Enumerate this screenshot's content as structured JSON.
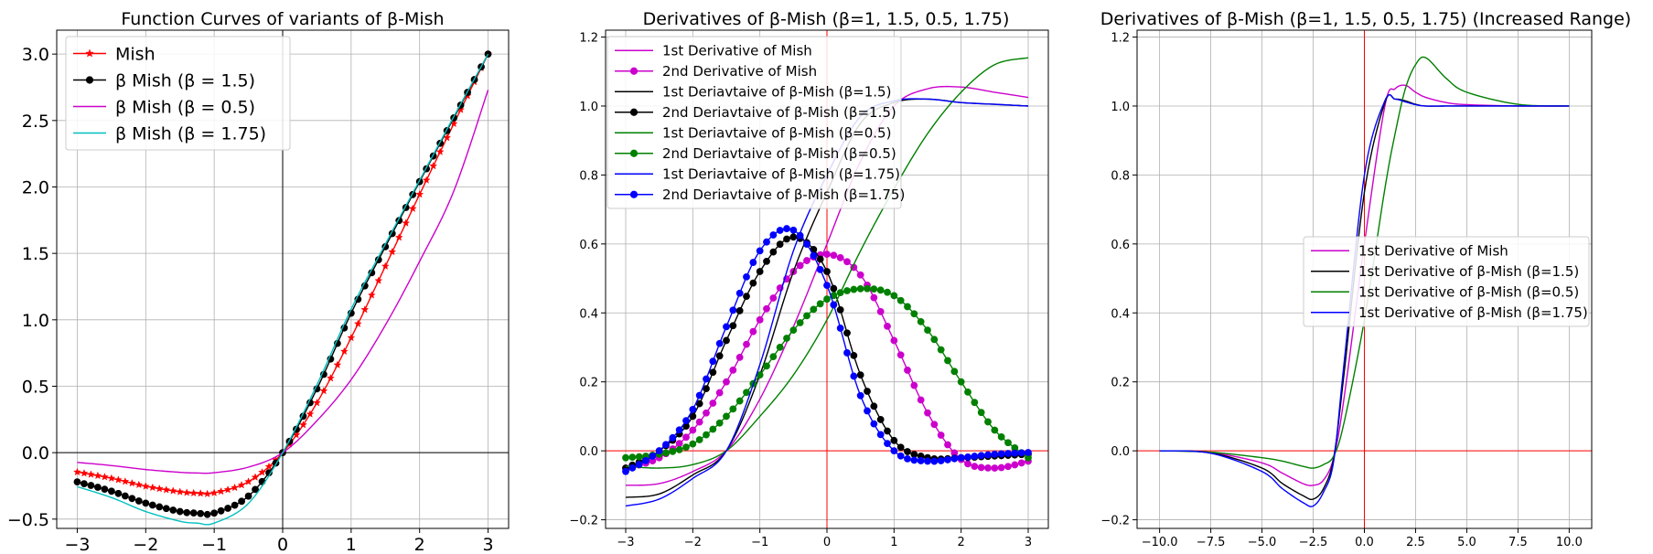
{
  "figure": {
    "background": "#ffffff"
  },
  "chart_data": [
    {
      "type": "line",
      "title": "Function Curves of variants of β-Mish",
      "xlabel": "",
      "ylabel": "",
      "xlim": [
        -3.3,
        3.3
      ],
      "ylim": [
        -0.57,
        3.18
      ],
      "xticks": [
        -3,
        -2,
        -1,
        0,
        1,
        2,
        3
      ],
      "xtick_labels": [
        "−3",
        "−2",
        "−1",
        "0",
        "1",
        "2",
        "3"
      ],
      "yticks": [
        -0.5,
        0.0,
        0.5,
        1.0,
        1.5,
        2.0,
        2.5,
        3.0
      ],
      "ytick_labels": [
        "−0.5",
        "0.0",
        "0.5",
        "1.0",
        "1.5",
        "2.0",
        "2.5",
        "3.0"
      ],
      "grid": true,
      "axis_lines": {
        "x0": "#000000",
        "y0": "#000000"
      },
      "legend_position": "top-left",
      "x": [
        -3.0,
        -2.5,
        -2.0,
        -1.5,
        -1.25,
        -1.0,
        -0.5,
        0.0,
        0.5,
        1.0,
        1.5,
        2.0,
        2.5,
        3.0
      ],
      "series": [
        {
          "name": "Mish",
          "color": "#ff0000",
          "marker": "star",
          "values": [
            -0.146,
            -0.193,
            -0.253,
            -0.295,
            -0.305,
            -0.303,
            -0.218,
            0.0,
            0.375,
            0.865,
            1.403,
            1.944,
            2.476,
            3.0
          ]
        },
        {
          "name": "β Mish (β = 1.5)",
          "color": "#000000",
          "marker": "dot",
          "values": [
            -0.22,
            -0.29,
            -0.38,
            -0.443,
            -0.455,
            -0.455,
            -0.327,
            0.0,
            0.48,
            1.05,
            1.55,
            2.04,
            2.52,
            3.0
          ]
        },
        {
          "name": "β Mish (β = 0.5)",
          "color": "#cc00cc",
          "marker": "none",
          "values": [
            -0.073,
            -0.097,
            -0.127,
            -0.148,
            -0.153,
            -0.151,
            -0.109,
            0.0,
            0.24,
            0.55,
            0.96,
            1.44,
            1.97,
            2.73
          ]
        },
        {
          "name": "β Mish (β = 1.75)",
          "color": "#00bfbf",
          "marker": "none",
          "values": [
            -0.256,
            -0.338,
            -0.443,
            -0.516,
            -0.53,
            -0.53,
            -0.382,
            0.0,
            0.51,
            1.08,
            1.57,
            2.05,
            2.53,
            3.0
          ]
        }
      ]
    },
    {
      "type": "line",
      "title": "Derivatives of β-Mish (β=1, 1.5, 0.5, 1.75)",
      "xlabel": "",
      "ylabel": "",
      "xlim": [
        -3.3,
        3.3
      ],
      "ylim": [
        -0.225,
        1.22
      ],
      "xticks": [
        -3,
        -2,
        -1,
        0,
        1,
        2,
        3
      ],
      "xtick_labels": [
        "−3",
        "−2",
        "−1",
        "0",
        "1",
        "2",
        "3"
      ],
      "yticks": [
        -0.2,
        0.0,
        0.2,
        0.4,
        0.6,
        0.8,
        1.0,
        1.2
      ],
      "ytick_labels": [
        "−0.2",
        "0.0",
        "0.2",
        "0.4",
        "0.6",
        "0.8",
        "1.0",
        "1.2"
      ],
      "grid": true,
      "axis_lines": {
        "x0": "#ff0000",
        "y0": "#ff0000"
      },
      "legend_position": "top-left",
      "x": [
        -3.0,
        -2.5,
        -2.0,
        -1.5,
        -1.0,
        -0.5,
        0.0,
        0.5,
        1.0,
        1.5,
        2.0,
        2.5,
        3.0
      ],
      "series": [
        {
          "name": "1st Derivative of Mish",
          "color": "#cc00cc",
          "marker": "none",
          "values": [
            -0.1,
            -0.095,
            -0.06,
            0.0,
            0.15,
            0.36,
            0.6,
            0.84,
            1.0,
            1.05,
            1.055,
            1.04,
            1.025
          ]
        },
        {
          "name": "2nd Derivative of Mish",
          "color": "#cc00cc",
          "marker": "dot",
          "values": [
            -0.05,
            -0.02,
            0.06,
            0.2,
            0.38,
            0.52,
            0.57,
            0.51,
            0.32,
            0.11,
            -0.025,
            -0.05,
            -0.03
          ]
        },
        {
          "name": "1st Deriavtaive of β-Mish (β=1.5)",
          "color": "#000000",
          "marker": "none",
          "values": [
            -0.135,
            -0.125,
            -0.07,
            0.0,
            0.22,
            0.52,
            0.75,
            0.95,
            1.01,
            1.02,
            1.01,
            1.005,
            1.0
          ]
        },
        {
          "name": "2nd Deriavtaive of β-Mish (β=1.5)",
          "color": "#000000",
          "marker": "dot",
          "values": [
            -0.05,
            0.0,
            0.1,
            0.32,
            0.52,
            0.62,
            0.52,
            0.22,
            0.03,
            -0.02,
            -0.02,
            -0.015,
            -0.01
          ]
        },
        {
          "name": "1st Deriavtaive of β-Mish (β=0.5)",
          "color": "#008000",
          "marker": "none",
          "values": [
            -0.045,
            -0.05,
            -0.04,
            0.0,
            0.1,
            0.22,
            0.38,
            0.58,
            0.76,
            0.92,
            1.04,
            1.12,
            1.14
          ]
        },
        {
          "name": "2nd Deriavtaive of β-Mish (β=0.5)",
          "color": "#008000",
          "marker": "dot",
          "values": [
            -0.02,
            -0.01,
            0.02,
            0.1,
            0.22,
            0.35,
            0.44,
            0.47,
            0.45,
            0.35,
            0.2,
            0.06,
            -0.02
          ]
        },
        {
          "name": "1st Deriavtaive of β-Mish (β=1.75)",
          "color": "#0000ff",
          "marker": "none",
          "values": [
            -0.16,
            -0.14,
            -0.08,
            0.0,
            0.25,
            0.58,
            0.8,
            0.97,
            1.015,
            1.02,
            1.01,
            1.005,
            1.0
          ]
        },
        {
          "name": "2nd Deriavtaive of β-Mish (β=1.75)",
          "color": "#0000ff",
          "marker": "dot",
          "values": [
            -0.06,
            0.0,
            0.12,
            0.36,
            0.58,
            0.64,
            0.48,
            0.16,
            0.0,
            -0.03,
            -0.02,
            -0.01,
            -0.005
          ]
        }
      ]
    },
    {
      "type": "line",
      "title": "Derivatives of β-Mish (β=1, 1.5, 0.5, 1.75) (Increased Range)",
      "xlabel": "",
      "ylabel": "",
      "xlim": [
        -11.1,
        11.1
      ],
      "ylim": [
        -0.225,
        1.22
      ],
      "xticks": [
        -10.0,
        -7.5,
        -5.0,
        -2.5,
        0.0,
        2.5,
        5.0,
        7.5,
        10.0
      ],
      "xtick_labels": [
        "−10.0",
        "−7.5",
        "−5.0",
        "−2.5",
        "0.0",
        "2.5",
        "5.0",
        "7.5",
        "10.0"
      ],
      "yticks": [
        -0.2,
        0.0,
        0.2,
        0.4,
        0.6,
        0.8,
        1.0,
        1.2
      ],
      "ytick_labels": [
        "−0.2",
        "0.0",
        "0.2",
        "0.4",
        "0.6",
        "0.8",
        "1.0",
        "1.2"
      ],
      "grid": true,
      "axis_lines": {
        "x0": "#ff0000",
        "y0": "#ff0000"
      },
      "legend_position": "center-right",
      "x": [
        -10.0,
        -7.5,
        -5.0,
        -4.0,
        -3.0,
        -2.5,
        -2.0,
        -1.5,
        -1.0,
        0.0,
        1.0,
        1.5,
        2.0,
        2.5,
        3.0,
        4.0,
        5.0,
        7.5,
        10.0
      ],
      "series": [
        {
          "name": "1st Derivative of Mish",
          "color": "#cc00cc",
          "values": [
            0.0,
            -0.005,
            -0.035,
            -0.065,
            -0.095,
            -0.1,
            -0.085,
            -0.02,
            0.15,
            0.6,
            1.0,
            1.05,
            1.06,
            1.04,
            1.025,
            1.01,
            1.004,
            1.0,
            1.0
          ]
        },
        {
          "name": "1st Derivative of  β-Mish (β=1.5)",
          "color": "#000000",
          "values": [
            0.0,
            -0.006,
            -0.05,
            -0.095,
            -0.13,
            -0.14,
            -0.11,
            -0.02,
            0.22,
            0.75,
            1.01,
            1.02,
            1.015,
            1.005,
            1.0,
            1.0,
            1.0,
            1.0,
            1.0
          ]
        },
        {
          "name": "1st Derivative of  β-Mish (β=0.5)",
          "color": "#008000",
          "values": [
            0.0,
            -0.004,
            -0.02,
            -0.03,
            -0.045,
            -0.05,
            -0.04,
            -0.015,
            0.08,
            0.38,
            0.76,
            0.92,
            1.05,
            1.12,
            1.14,
            1.08,
            1.04,
            1.005,
            1.0
          ]
        },
        {
          "name": "1st Derivative of  β-Mish (β=1.75)",
          "color": "#0000ff",
          "values": [
            0.0,
            -0.007,
            -0.06,
            -0.11,
            -0.15,
            -0.16,
            -0.12,
            -0.03,
            0.25,
            0.8,
            1.015,
            1.02,
            1.012,
            1.004,
            1.0,
            1.0,
            1.0,
            1.0,
            1.0
          ]
        }
      ]
    }
  ]
}
